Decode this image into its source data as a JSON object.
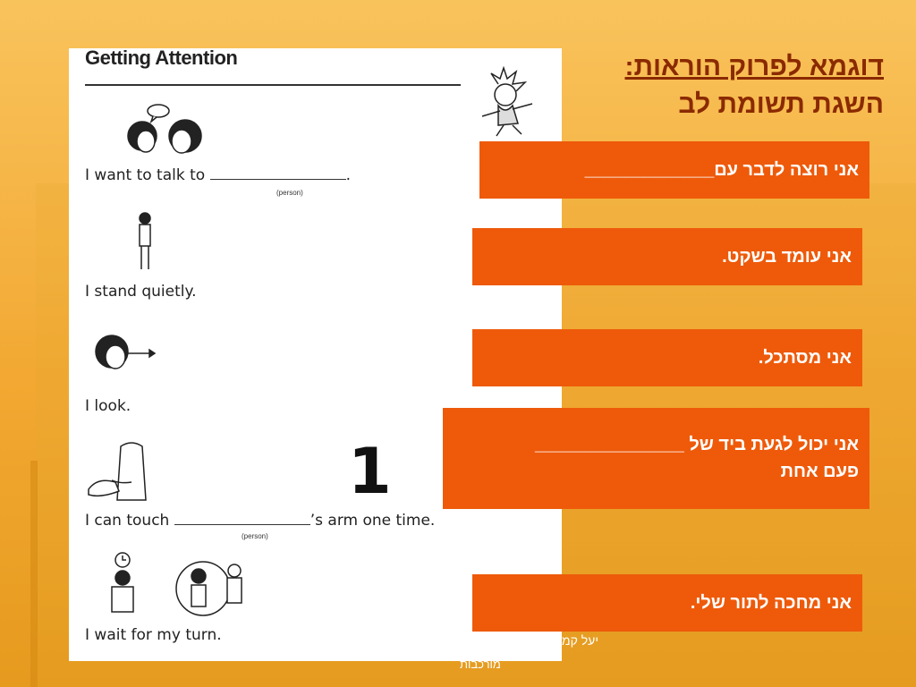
{
  "slide": {
    "title_line1": "דוגמא לפרוק הוראות:",
    "title_line2": "השגת תשומת לב"
  },
  "worksheet": {
    "heading": "Getting Attention",
    "line1": "I want to talk to",
    "line1_end": ".",
    "person_label_1": "(person)",
    "line2": "I stand quietly.",
    "line3": "I look.",
    "number": "1",
    "line4_start": "I can touch",
    "line4_end": "’s arm one time.",
    "person_label_2": "(person)",
    "line5": "I wait for my turn."
  },
  "boxes": {
    "box1": "אני רוצה לדבר עם_____________",
    "box2": "אני עומד בשקט.",
    "box3": "אני מסתכל.",
    "box4_line1": "אני יכול לגעת ביד של _______________",
    "box4_line2": "פעם אחת",
    "box5": "אני מחכה לתור שלי."
  },
  "footer": {
    "author": "יעל קמ",
    "subtitle": "מורכבות"
  },
  "colors": {
    "accent_box": "#ee5a0a",
    "title": "#8a2a00",
    "background": "#f2a832"
  }
}
